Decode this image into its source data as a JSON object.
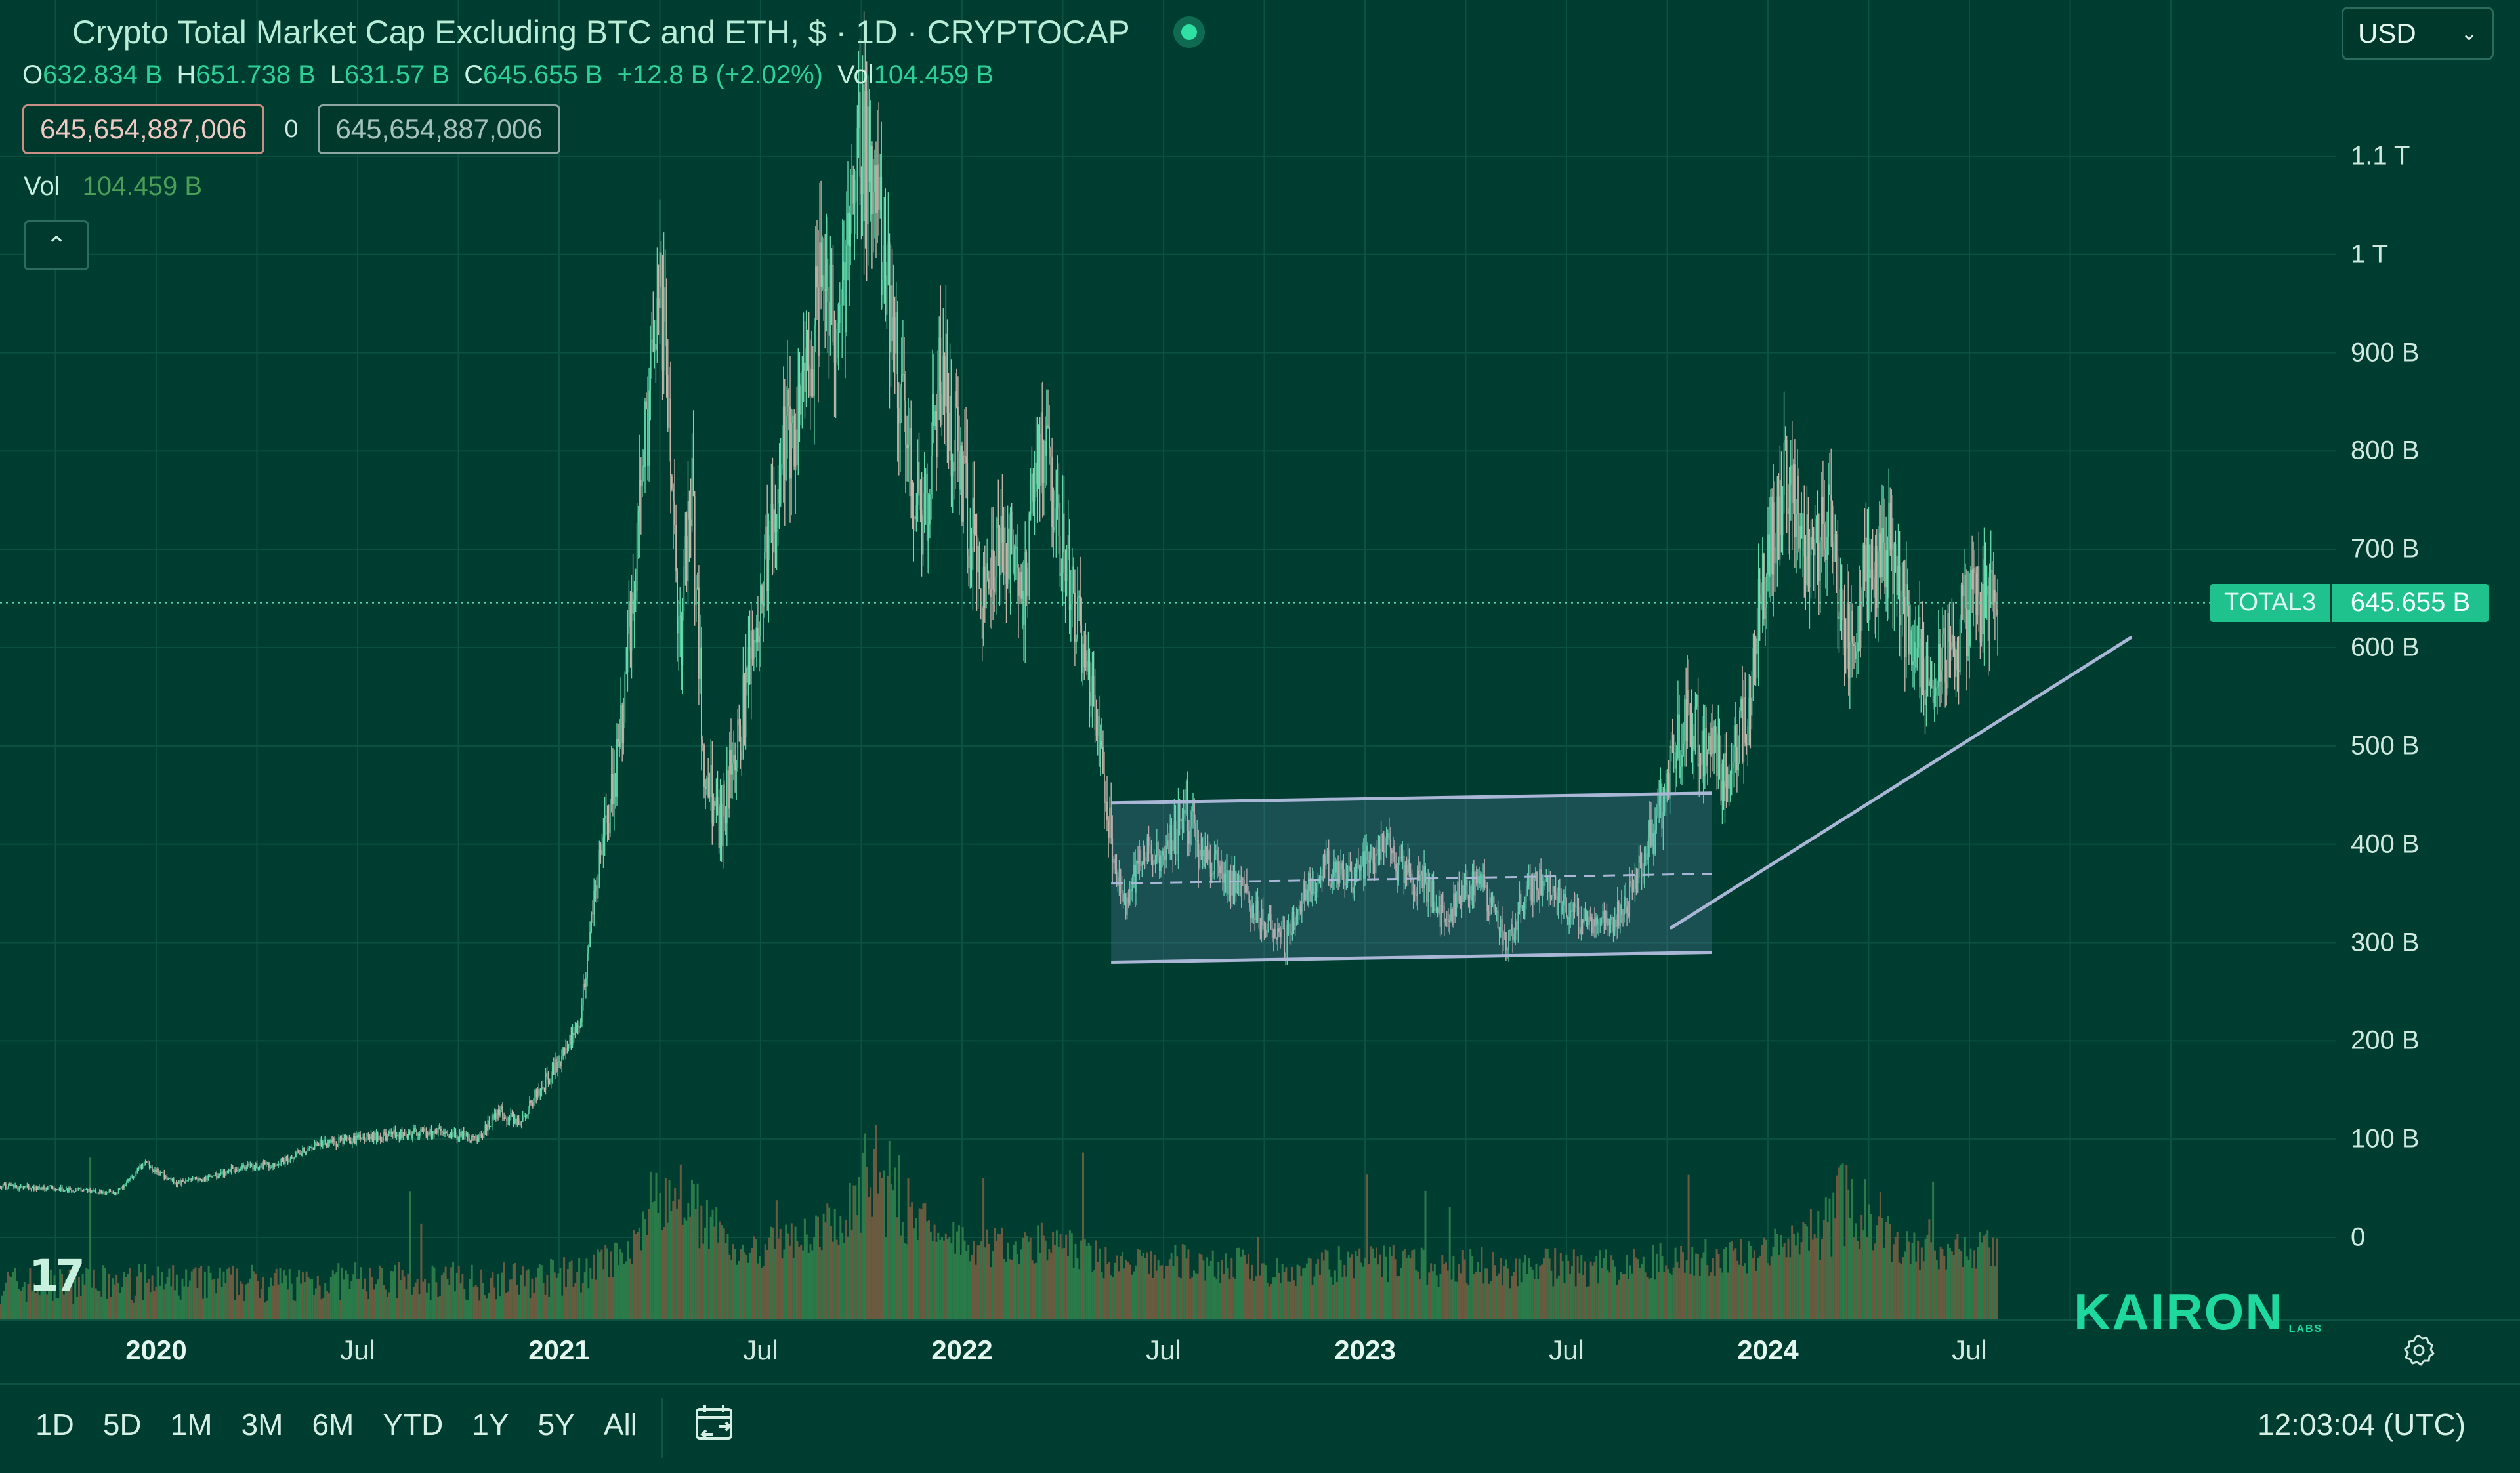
{
  "header": {
    "title": "Crypto Total Market Cap Excluding BTC and ETH, $ · 1D · CRYPTOCAP",
    "ohlc": [
      {
        "label": "O",
        "value": "632.834 B"
      },
      {
        "label": "H",
        "value": "651.738 B"
      },
      {
        "label": "L",
        "value": "631.57 B"
      },
      {
        "label": "C",
        "value": "645.655 B"
      },
      {
        "label": "",
        "value": "+12.8 B (+2.02%)"
      },
      {
        "label": "Vol",
        "value": "104.459 B"
      }
    ],
    "price_box_main": "645,654,887,006",
    "price_box_zero": "0",
    "price_box_alt": "645,654,887,006",
    "vol_label": "Vol",
    "vol_value": "104.459 B",
    "collapse_glyph": "⌃"
  },
  "currency": {
    "label": "USD",
    "chevron": "⌄"
  },
  "last_price": {
    "symbol": "TOTAL3",
    "value": "645.655 B",
    "level": 645.655
  },
  "brand": {
    "tv_logo": "17",
    "kairon": "KAIRON",
    "kairon_sub": "LABS"
  },
  "timeframes": [
    "1D",
    "5D",
    "1M",
    "3M",
    "6M",
    "YTD",
    "1Y",
    "5Y",
    "All"
  ],
  "clock": "12:03:04 (UTC)",
  "icons": {
    "settings": "settings-gear-icon",
    "date_range": "calendar-range-icon",
    "collapse": "chevron-up-icon",
    "live": "live-status-dot-icon"
  },
  "colors": {
    "background": "#003d31",
    "candle_up": "#5fd6a8",
    "candle_down": "#c3b3a8",
    "volume_up": "#2a7a4a",
    "volume_down": "#6a5a40",
    "accent": "#1fc28c",
    "drawing": "#a9b6d6"
  },
  "chart_data": {
    "type": "line",
    "title": "Crypto Total Market Cap Excluding BTC and ETH, $ · 1D · CRYPTOCAP",
    "xlabel": "",
    "ylabel": "",
    "ylim": [
      0,
      1150
    ],
    "y_unit": "B USD",
    "y_ticks": [
      {
        "v": 0,
        "label": "0"
      },
      {
        "v": 100,
        "label": "100 B"
      },
      {
        "v": 200,
        "label": "200 B"
      },
      {
        "v": 300,
        "label": "300 B"
      },
      {
        "v": 400,
        "label": "400 B"
      },
      {
        "v": 500,
        "label": "500 B"
      },
      {
        "v": 600,
        "label": "600 B"
      },
      {
        "v": 700,
        "label": "700 B"
      },
      {
        "v": 800,
        "label": "800 B"
      },
      {
        "v": 900,
        "label": "900 B"
      },
      {
        "v": 1000,
        "label": "1 T"
      },
      {
        "v": 1100,
        "label": "1.1 T"
      }
    ],
    "x_ticks": [
      {
        "t": 2020.0,
        "label": "2020",
        "year": true
      },
      {
        "t": 2020.5,
        "label": "Jul",
        "year": false
      },
      {
        "t": 2021.0,
        "label": "2021",
        "year": true
      },
      {
        "t": 2021.5,
        "label": "Jul",
        "year": false
      },
      {
        "t": 2022.0,
        "label": "2022",
        "year": true
      },
      {
        "t": 2022.5,
        "label": "Jul",
        "year": false
      },
      {
        "t": 2023.0,
        "label": "2023",
        "year": true
      },
      {
        "t": 2023.5,
        "label": "Jul",
        "year": false
      },
      {
        "t": 2024.0,
        "label": "2024",
        "year": true
      },
      {
        "t": 2024.5,
        "label": "Jul",
        "year": false
      }
    ],
    "series": [
      {
        "x": [
          2019.61,
          2019.75,
          2019.9,
          2019.97,
          2020.05,
          2020.12,
          2020.2,
          2020.3,
          2020.4,
          2020.5,
          2020.6,
          2020.7,
          2020.8,
          2020.85,
          2020.9,
          2020.95,
          2021.0,
          2021.05,
          2021.1,
          2021.15,
          2021.2,
          2021.25,
          2021.3,
          2021.33,
          2021.36,
          2021.4,
          2021.45,
          2021.5,
          2021.55,
          2021.6,
          2021.65,
          2021.7,
          2021.75,
          2021.8,
          2021.85,
          2021.9,
          2021.95,
          2022.0,
          2022.05,
          2022.1,
          2022.15,
          2022.2,
          2022.25,
          2022.3,
          2022.35,
          2022.4,
          2022.45,
          2022.5,
          2022.55,
          2022.6,
          2022.65,
          2022.7,
          2022.75,
          2022.8,
          2022.85,
          2022.9,
          2022.95,
          2023.0,
          2023.05,
          2023.1,
          2023.15,
          2023.2,
          2023.25,
          2023.3,
          2023.35,
          2023.4,
          2023.45,
          2023.5,
          2023.55,
          2023.6,
          2023.65,
          2023.7,
          2023.75,
          2023.8,
          2023.85,
          2023.9,
          2023.95,
          2024.0,
          2024.05,
          2024.1,
          2024.15,
          2024.2,
          2024.25,
          2024.3,
          2024.35,
          2024.4,
          2024.45,
          2024.5,
          2024.55,
          2024.57
        ],
        "values": [
          52,
          50,
          45,
          75,
          55,
          60,
          70,
          75,
          95,
          100,
          105,
          108,
          100,
          130,
          115,
          150,
          180,
          220,
          380,
          500,
          750,
          980,
          600,
          750,
          480,
          420,
          520,
          640,
          800,
          820,
          960,
          920,
          1120,
          1000,
          860,
          720,
          880,
          780,
          640,
          720,
          660,
          800,
          700,
          600,
          470,
          330,
          390,
          380,
          440,
          390,
          370,
          350,
          320,
          300,
          350,
          380,
          360,
          380,
          400,
          370,
          360,
          320,
          360,
          350,
          300,
          350,
          360,
          330,
          320,
          320,
          340,
          400,
          460,
          530,
          500,
          460,
          540,
          700,
          780,
          680,
          720,
          600,
          680,
          700,
          620,
          560,
          600,
          640,
          645.655,
          645.655
        ],
        "color": "#5fd6a8"
      }
    ],
    "drawings": {
      "range_box": {
        "x_start": 2022.37,
        "x_end": 2023.86,
        "y_bottom_start": 280,
        "y_bottom_end": 290,
        "y_top_start": 442,
        "y_top_end": 452,
        "y_mid_start": 360,
        "y_mid_end": 370
      },
      "trendline": {
        "x_start": 2023.76,
        "y_start": 315,
        "x_end": 2024.9,
        "y_end": 610
      }
    },
    "volume": {
      "max": 220,
      "typical_peak_years": [
        2021.3,
        2021.8,
        2024.2
      ]
    },
    "grid": true,
    "legend": "none"
  }
}
